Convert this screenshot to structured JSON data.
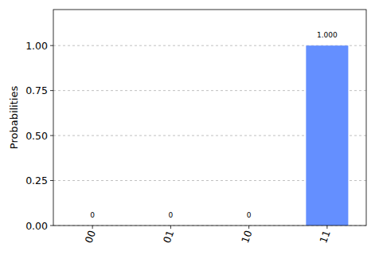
{
  "chart_data": {
    "type": "bar",
    "y_label": "Probabilities",
    "categories": [
      "00",
      "01",
      "10",
      "11"
    ],
    "values": [
      0,
      0,
      0,
      1
    ],
    "value_labels": [
      "0",
      "0",
      "0",
      "1.000"
    ],
    "data_labels": true,
    "color": "#648fff",
    "ylim": [
      0,
      1.2
    ],
    "yticks": [
      {
        "value": 0,
        "label": "0.00"
      },
      {
        "value": 0.25,
        "label": "0.25"
      },
      {
        "value": 0.5,
        "label": "0.50"
      },
      {
        "value": 0.75,
        "label": "0.75"
      },
      {
        "value": 1,
        "label": "1.00"
      }
    ],
    "grid": true
  }
}
